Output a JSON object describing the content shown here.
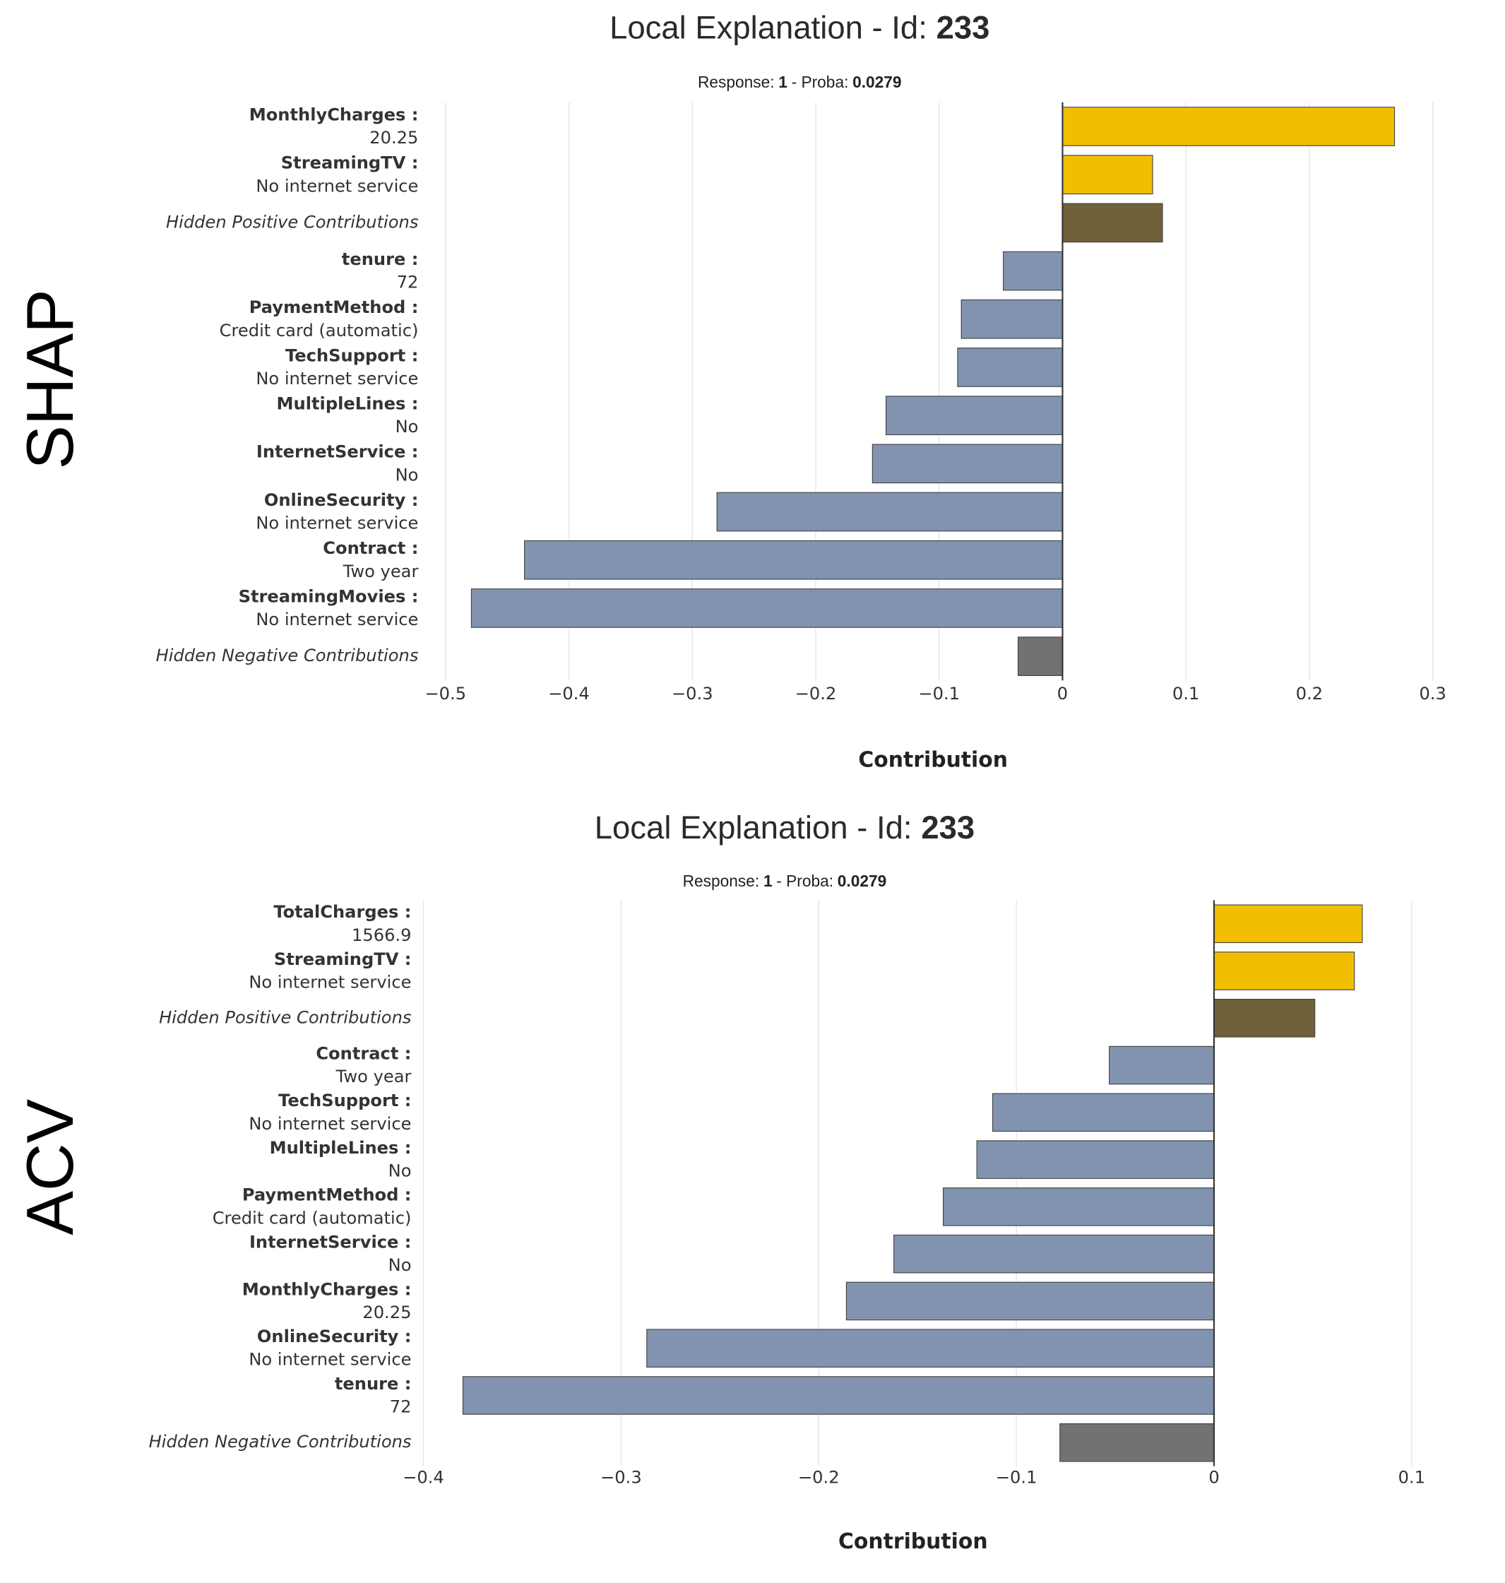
{
  "chart_data": [
    {
      "type": "bar",
      "orientation": "horizontal",
      "method": "SHAP",
      "title": "Local Explanation - Id:",
      "title_id": "233",
      "subtitle": [
        "Response:",
        "1",
        "- Proba:",
        "0.0279"
      ],
      "xlabel": "Contribution",
      "categories": [
        [
          "MonthlyCharges :",
          "20.25"
        ],
        [
          "StreamingTV :",
          "No internet service"
        ],
        "Hidden Positive Contributions",
        [
          "tenure :",
          "72"
        ],
        [
          "PaymentMethod :",
          "Credit card (automatic)"
        ],
        [
          "TechSupport :",
          "No internet service"
        ],
        [
          "MultipleLines :",
          "No"
        ],
        [
          "InternetService :",
          "No"
        ],
        [
          "OnlineSecurity :",
          "No internet service"
        ],
        [
          "Contract :",
          "Two year"
        ],
        [
          "StreamingMovies :",
          "No internet service"
        ],
        "Hidden Negative Contributions"
      ],
      "values": [
        0.269,
        0.073,
        0.081,
        -0.048,
        -0.082,
        -0.085,
        -0.143,
        -0.154,
        -0.28,
        -0.436,
        -0.479,
        -0.036
      ],
      "colors": [
        "#f2bf00",
        "#f2bf00",
        "#706039",
        "#8193af",
        "#8193af",
        "#8193af",
        "#8193af",
        "#8193af",
        "#8193af",
        "#8193af",
        "#8193af",
        "#727272"
      ],
      "xlim": [
        -0.5,
        0.3
      ],
      "xticks": [
        {
          "value": -0.5,
          "label": "−0.5"
        },
        {
          "value": -0.4,
          "label": "−0.4"
        },
        {
          "value": -0.3,
          "label": "−0.3"
        },
        {
          "value": -0.2,
          "label": "−0.2"
        },
        {
          "value": -0.1,
          "label": "−0.1"
        },
        0,
        0.1,
        0.2,
        0.3
      ],
      "grid": true
    },
    {
      "type": "bar",
      "orientation": "horizontal",
      "method": "ACV",
      "title": "Local Explanation - Id:",
      "title_id": "233",
      "subtitle": [
        "Response:",
        "1",
        "- Proba:",
        "0.0279"
      ],
      "xlabel": "Contribution",
      "categories": [
        [
          "TotalCharges :",
          "1566.9"
        ],
        [
          "StreamingTV :",
          "No internet service"
        ],
        "Hidden Positive Contributions",
        [
          "Contract :",
          "Two year"
        ],
        [
          "TechSupport :",
          "No internet service"
        ],
        [
          "MultipleLines :",
          "No"
        ],
        [
          "PaymentMethod :",
          "Credit card (automatic)"
        ],
        [
          "InternetService :",
          "No"
        ],
        [
          "MonthlyCharges :",
          "20.25"
        ],
        [
          "OnlineSecurity :",
          "No internet service"
        ],
        [
          "tenure :",
          "72"
        ],
        "Hidden Negative Contributions"
      ],
      "values": [
        0.075,
        0.071,
        0.051,
        -0.053,
        -0.112,
        -0.12,
        -0.137,
        -0.162,
        -0.186,
        -0.287,
        -0.38,
        -0.078
      ],
      "colors": [
        "#f2bf00",
        "#f2bf00",
        "#706039",
        "#8193af",
        "#8193af",
        "#8193af",
        "#8193af",
        "#8193af",
        "#8193af",
        "#8193af",
        "#8193af",
        "#727272"
      ],
      "xlim": [
        -0.4,
        0.1
      ],
      "xticks": [
        {
          "value": -0.4,
          "label": "−0.4"
        },
        {
          "value": -0.3,
          "label": "−0.3"
        },
        {
          "value": -0.2,
          "label": "−0.2"
        },
        {
          "value": -0.1,
          "label": "−0.1"
        },
        0,
        0.1
      ],
      "grid": true
    }
  ]
}
